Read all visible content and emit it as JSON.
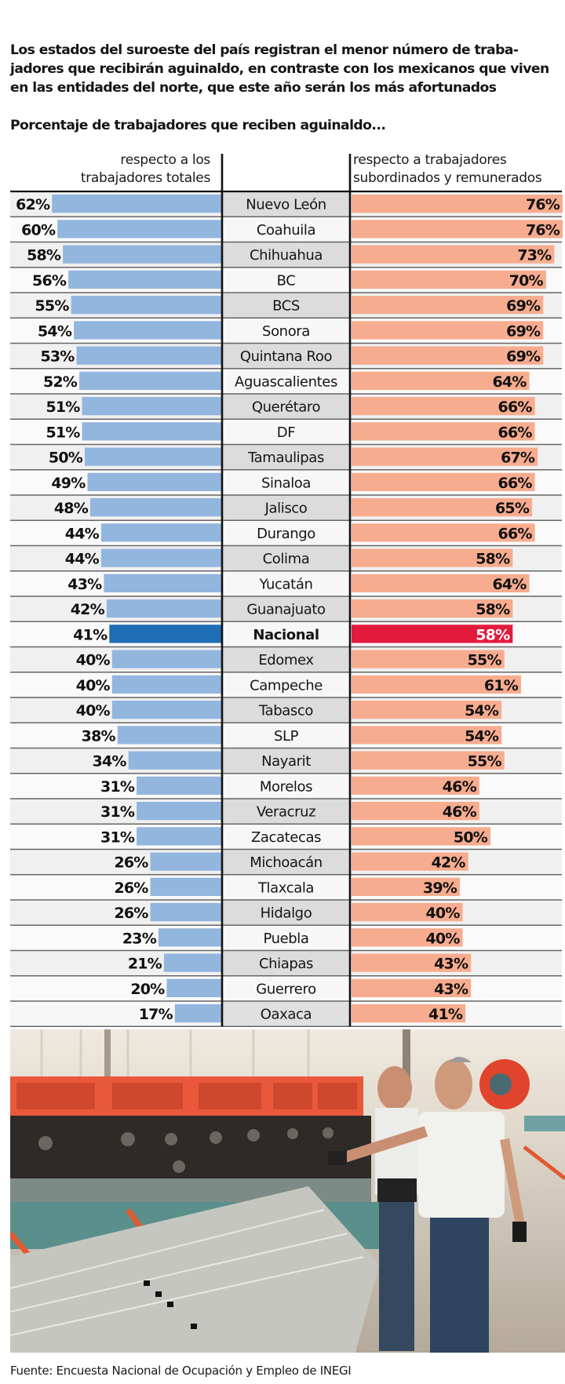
{
  "intro_text": "Los estados del suroeste del país registran el menor número de trabajadores que recibirán aguinaldo, en contraste con los mexicanos que viven en las entidades del norte, que este año serán los más afortunados",
  "intro_lines": [
    "Los estados del suroeste del país registran el menor número de traba-",
    "jadores que recibirán aguinaldo, en contraste con los mexicanos que viven",
    "en las entidades del norte, que este año serán los más afortunados"
  ],
  "source": "Fuente: Encuesta Nacional de Ocupación y Empleo de INEGI",
  "photo": {
    "description": "Dos trabajadores operando maquinaria industrial de láminas en una fábrica"
  },
  "colors": {
    "left_bar": "#93b6df",
    "left_highlight": "#1f6eb5",
    "right_bar": "#f7ac8f",
    "right_highlight": "#e21b3c"
  },
  "chart_data": {
    "type": "bar",
    "orientation": "horizontal, back-to-back",
    "title": "Porcentaje de trabajadores que reciben aguinaldo...",
    "highlight_category": "Nacional",
    "unit": "%",
    "categories": [
      "Nuevo León",
      "Coahuila",
      "Chihuahua",
      "BC",
      "BCS",
      "Sonora",
      "Quintana Roo",
      "Aguascalientes",
      "Querétaro",
      "DF",
      "Tamaulipas",
      "Sinaloa",
      "Jalisco",
      "Durango",
      "Colima",
      "Yucatán",
      "Guanajuato",
      "Nacional",
      "Edomex",
      "Campeche",
      "Tabasco",
      "SLP",
      "Nayarit",
      "Morelos",
      "Veracruz",
      "Zacatecas",
      "Michoacán",
      "Tlaxcala",
      "Hidalgo",
      "Puebla",
      "Chiapas",
      "Guerrero",
      "Oaxaca"
    ],
    "series": [
      {
        "name": "respecto a los trabajadores totales",
        "header_lines": [
          "respecto a los",
          "trabajadores totales"
        ],
        "side": "left",
        "values": [
          62,
          60,
          58,
          56,
          55,
          54,
          53,
          52,
          51,
          51,
          50,
          49,
          48,
          44,
          44,
          43,
          42,
          41,
          40,
          40,
          40,
          38,
          34,
          31,
          31,
          31,
          26,
          26,
          26,
          23,
          21,
          20,
          17
        ]
      },
      {
        "name": "respecto a trabajadores subordinados y remunerados",
        "header_lines": [
          "respecto a trabajadores",
          "subordinados y remunerados"
        ],
        "side": "right",
        "values": [
          76,
          76,
          73,
          70,
          69,
          69,
          69,
          64,
          66,
          66,
          67,
          66,
          65,
          66,
          58,
          64,
          58,
          58,
          55,
          61,
          54,
          54,
          55,
          46,
          46,
          50,
          42,
          39,
          40,
          40,
          43,
          43,
          41
        ]
      }
    ],
    "xlim": [
      0,
      100
    ],
    "grid": false,
    "legend": "column headers top"
  }
}
